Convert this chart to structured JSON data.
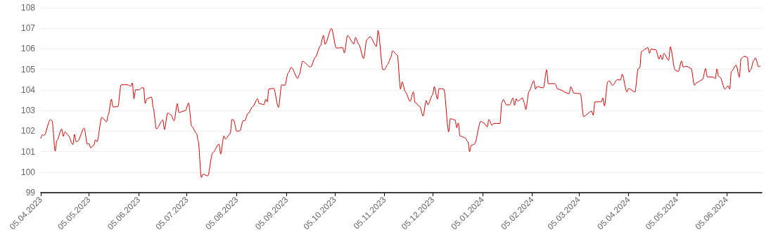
{
  "chart_data": {
    "type": "line",
    "xlim": [
      "2023-04-05",
      "2024-06-27"
    ],
    "ylim": [
      99,
      108
    ],
    "yticks": [
      99,
      100,
      101,
      102,
      103,
      104,
      105,
      106,
      107,
      108
    ],
    "xticks": [
      {
        "value": "2023-04-05",
        "label": "05.04.2023"
      },
      {
        "value": "2023-05-05",
        "label": "05.05.2023"
      },
      {
        "value": "2023-06-05",
        "label": "05.06.2023"
      },
      {
        "value": "2023-07-05",
        "label": "05.07.2023"
      },
      {
        "value": "2023-08-05",
        "label": "05.08.2023"
      },
      {
        "value": "2023-09-05",
        "label": "05.09.2023"
      },
      {
        "value": "2023-10-05",
        "label": "05.10.2023"
      },
      {
        "value": "2023-11-05",
        "label": "05.11.2023"
      },
      {
        "value": "2023-12-05",
        "label": "05.12.2023"
      },
      {
        "value": "2024-01-05",
        "label": "05.01.2024"
      },
      {
        "value": "2024-02-05",
        "label": "05.02.2024"
      },
      {
        "value": "2024-03-05",
        "label": "05.03.2024"
      },
      {
        "value": "2024-04-05",
        "label": "05.04.2024"
      },
      {
        "value": "2024-05-05",
        "label": "05.05.2024"
      },
      {
        "value": "2024-06-05",
        "label": "05.06.2024"
      }
    ],
    "grid": "y",
    "marker": "none",
    "line_style": "solid",
    "series": [
      {
        "color": "#cc0000",
        "x": [
          "2023-04-05",
          "2023-04-06",
          "2023-04-07",
          "2023-04-11",
          "2023-04-12",
          "2023-04-14",
          "2023-04-15",
          "2023-04-18",
          "2023-04-19",
          "2023-04-20",
          "2023-04-22",
          "2023-04-25",
          "2023-04-26",
          "2023-04-27",
          "2023-04-28",
          "2023-05-02",
          "2023-05-04",
          "2023-05-05",
          "2023-05-06",
          "2023-05-08",
          "2023-05-09",
          "2023-05-10",
          "2023-05-13",
          "2023-05-16",
          "2023-05-17",
          "2023-05-19",
          "2023-05-20",
          "2023-05-23",
          "2023-05-25",
          "2023-05-29",
          "2023-05-31",
          "2023-06-01",
          "2023-06-02",
          "2023-06-03",
          "2023-06-05",
          "2023-06-07",
          "2023-06-08",
          "2023-06-09",
          "2023-06-10",
          "2023-06-13",
          "2023-06-14",
          "2023-06-16",
          "2023-06-20",
          "2023-06-21",
          "2023-06-23",
          "2023-06-25",
          "2023-06-27",
          "2023-06-29",
          "2023-06-30",
          "2023-07-04",
          "2023-07-06",
          "2023-07-08",
          "2023-07-11",
          "2023-07-12",
          "2023-07-14",
          "2023-07-15",
          "2023-07-18",
          "2023-07-21",
          "2023-07-25",
          "2023-07-26",
          "2023-07-28",
          "2023-07-29",
          "2023-08-01",
          "2023-08-02",
          "2023-08-03",
          "2023-08-05",
          "2023-08-07",
          "2023-08-09",
          "2023-08-10",
          "2023-08-12",
          "2023-08-15",
          "2023-08-18",
          "2023-08-19",
          "2023-08-22",
          "2023-08-23",
          "2023-08-24",
          "2023-08-25",
          "2023-08-28",
          "2023-08-31",
          "2023-09-02",
          "2023-09-04",
          "2023-09-06",
          "2023-09-08",
          "2023-09-12",
          "2023-09-13",
          "2023-09-15",
          "2023-09-20",
          "2023-09-23",
          "2023-09-26",
          "2023-09-28",
          "2023-09-29",
          "2023-10-03",
          "2023-10-06",
          "2023-10-10",
          "2023-10-11",
          "2023-10-13",
          "2023-10-17",
          "2023-10-18",
          "2023-10-20",
          "2023-10-23",
          "2023-10-25",
          "2023-10-27",
          "2023-10-31",
          "2023-11-01",
          "2023-11-04",
          "2023-11-05",
          "2023-11-07",
          "2023-11-09",
          "2023-11-10",
          "2023-11-13",
          "2023-11-15",
          "2023-11-16",
          "2023-11-18",
          "2023-11-21",
          "2023-11-23",
          "2023-11-24",
          "2023-11-27",
          "2023-11-29",
          "2023-12-01",
          "2023-12-02",
          "2023-12-05",
          "2023-12-06",
          "2023-12-08",
          "2023-12-09",
          "2023-12-12",
          "2023-12-15",
          "2023-12-16",
          "2023-12-19",
          "2023-12-20",
          "2023-12-21",
          "2023-12-22",
          "2023-12-25",
          "2023-12-27",
          "2023-12-28",
          "2023-12-29",
          "2023-12-31",
          "2024-01-04",
          "2024-01-06",
          "2024-01-08",
          "2024-01-09",
          "2024-01-11",
          "2024-01-12",
          "2024-01-16",
          "2024-01-17",
          "2024-01-18",
          "2024-01-20",
          "2024-01-22",
          "2024-01-24",
          "2024-01-25",
          "2024-01-26",
          "2024-01-27",
          "2024-01-30",
          "2024-01-31",
          "2024-02-01",
          "2024-02-03",
          "2024-02-06",
          "2024-02-07",
          "2024-02-08",
          "2024-02-12",
          "2024-02-14",
          "2024-02-15",
          "2024-02-19",
          "2024-02-21",
          "2024-02-28",
          "2024-02-29",
          "2024-03-02",
          "2024-03-06",
          "2024-03-08",
          "2024-03-13",
          "2024-03-14",
          "2024-03-15",
          "2024-03-19",
          "2024-03-20",
          "2024-03-21",
          "2024-03-23",
          "2024-03-24",
          "2024-03-26",
          "2024-03-29",
          "2024-03-31",
          "2024-04-01",
          "2024-04-04",
          "2024-04-05",
          "2024-04-09",
          "2024-04-11",
          "2024-04-12",
          "2024-04-13",
          "2024-04-16",
          "2024-04-17",
          "2024-04-18",
          "2024-04-19",
          "2024-04-22",
          "2024-04-24",
          "2024-04-25",
          "2024-04-26",
          "2024-04-27",
          "2024-04-30",
          "2024-05-01",
          "2024-05-04",
          "2024-05-06",
          "2024-05-08",
          "2024-05-09",
          "2024-05-11",
          "2024-05-14",
          "2024-05-16",
          "2024-05-17",
          "2024-05-21",
          "2024-05-23",
          "2024-05-24",
          "2024-05-28",
          "2024-05-29",
          "2024-05-30",
          "2024-05-31",
          "2024-06-01",
          "2024-06-04",
          "2024-06-06",
          "2024-06-07",
          "2024-06-08",
          "2024-06-11",
          "2024-06-13",
          "2024-06-14",
          "2024-06-16",
          "2024-06-18",
          "2024-06-19",
          "2024-06-20",
          "2024-06-22",
          "2024-06-23",
          "2024-06-25",
          "2024-06-26"
        ],
        "values": [
          101.65,
          101.82,
          101.78,
          102.56,
          102.5,
          101.02,
          101.53,
          102.1,
          101.74,
          101.96,
          101.8,
          101.34,
          101.84,
          101.48,
          101.51,
          102.14,
          101.36,
          101.39,
          101.19,
          101.3,
          101.57,
          101.48,
          102.67,
          102.45,
          102.79,
          103.55,
          103.17,
          103.19,
          104.25,
          104.25,
          104.18,
          104.34,
          103.57,
          104.01,
          104.0,
          104.11,
          104.1,
          103.34,
          103.57,
          103.65,
          103.13,
          102.1,
          102.54,
          102.07,
          102.88,
          102.79,
          102.5,
          103.33,
          102.9,
          102.99,
          103.36,
          102.22,
          101.88,
          101.53,
          99.74,
          99.9,
          99.82,
          100.94,
          101.36,
          100.88,
          101.76,
          101.61,
          101.88,
          102.56,
          102.54,
          101.99,
          102.01,
          102.5,
          102.5,
          102.85,
          103.19,
          103.57,
          103.34,
          103.28,
          103.55,
          103.42,
          104.04,
          104.08,
          103.15,
          104.25,
          104.22,
          104.82,
          105.1,
          104.56,
          104.75,
          105.39,
          105.11,
          105.59,
          106.13,
          106.65,
          106.22,
          106.99,
          106.04,
          106.06,
          105.8,
          106.64,
          106.24,
          106.56,
          106.22,
          105.53,
          106.44,
          106.59,
          106.12,
          106.9,
          104.99,
          104.99,
          105.24,
          105.59,
          105.91,
          105.7,
          104.04,
          104.39,
          103.91,
          103.44,
          103.91,
          103.39,
          103.19,
          102.73,
          103.48,
          103.28,
          103.76,
          104.16,
          103.55,
          104.07,
          104.04,
          101.96,
          102.6,
          102.54,
          102.16,
          102.39,
          101.76,
          101.68,
          101.48,
          100.99,
          101.3,
          101.36,
          102.47,
          102.39,
          102.2,
          102.56,
          102.28,
          102.37,
          102.37,
          103.38,
          103.53,
          103.27,
          103.28,
          103.61,
          103.25,
          103.57,
          103.45,
          103.61,
          103.38,
          103.04,
          103.93,
          104.45,
          104.04,
          104.16,
          104.1,
          104.98,
          104.3,
          104.31,
          104.04,
          103.82,
          104.16,
          103.84,
          103.82,
          102.71,
          102.96,
          102.77,
          103.42,
          103.42,
          103.61,
          103.22,
          104.39,
          104.45,
          104.22,
          104.5,
          104.48,
          104.76,
          103.9,
          104.07,
          103.9,
          105.04,
          105.07,
          105.87,
          106.02,
          106.07,
          105.78,
          105.99,
          105.95,
          105.5,
          105.7,
          105.47,
          105.78,
          105.44,
          106.1,
          104.96,
          104.9,
          105.41,
          105.11,
          105.15,
          105.05,
          104.22,
          104.33,
          104.5,
          105.04,
          104.64,
          104.62,
          104.54,
          105.02,
          104.67,
          104.62,
          104.04,
          104.2,
          104.04,
          104.9,
          105.21,
          104.62,
          105.51,
          105.64,
          105.59,
          104.87,
          104.98,
          105.44,
          105.56,
          105.13,
          105.16
        ]
      }
    ]
  }
}
